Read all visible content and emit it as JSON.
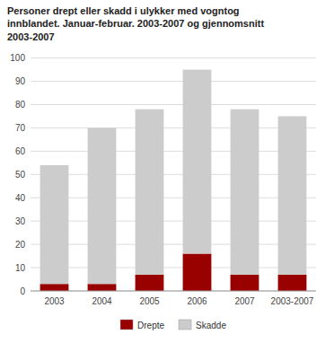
{
  "chart_data": {
    "type": "bar",
    "title": "Personer drept eller skadd i ulykker med vogntog\ninnblandet. Januar-februar. 2003-2007 og gjennomsnitt\n2003-2007",
    "categories": [
      "2003",
      "2004",
      "2005",
      "2006",
      "2007",
      "2003-2007"
    ],
    "series": [
      {
        "name": "Drepte",
        "color": "#990000",
        "values": [
          3,
          3,
          7,
          16,
          7,
          7
        ]
      },
      {
        "name": "Skadde",
        "color": "#cccccc",
        "values": [
          51,
          67,
          71,
          79,
          71,
          68
        ]
      }
    ],
    "stacked": true,
    "ylim": [
      0,
      100
    ],
    "yticks": [
      0,
      10,
      20,
      30,
      40,
      50,
      60,
      70,
      80,
      90,
      100
    ],
    "grid": true,
    "legend": "bottom"
  }
}
